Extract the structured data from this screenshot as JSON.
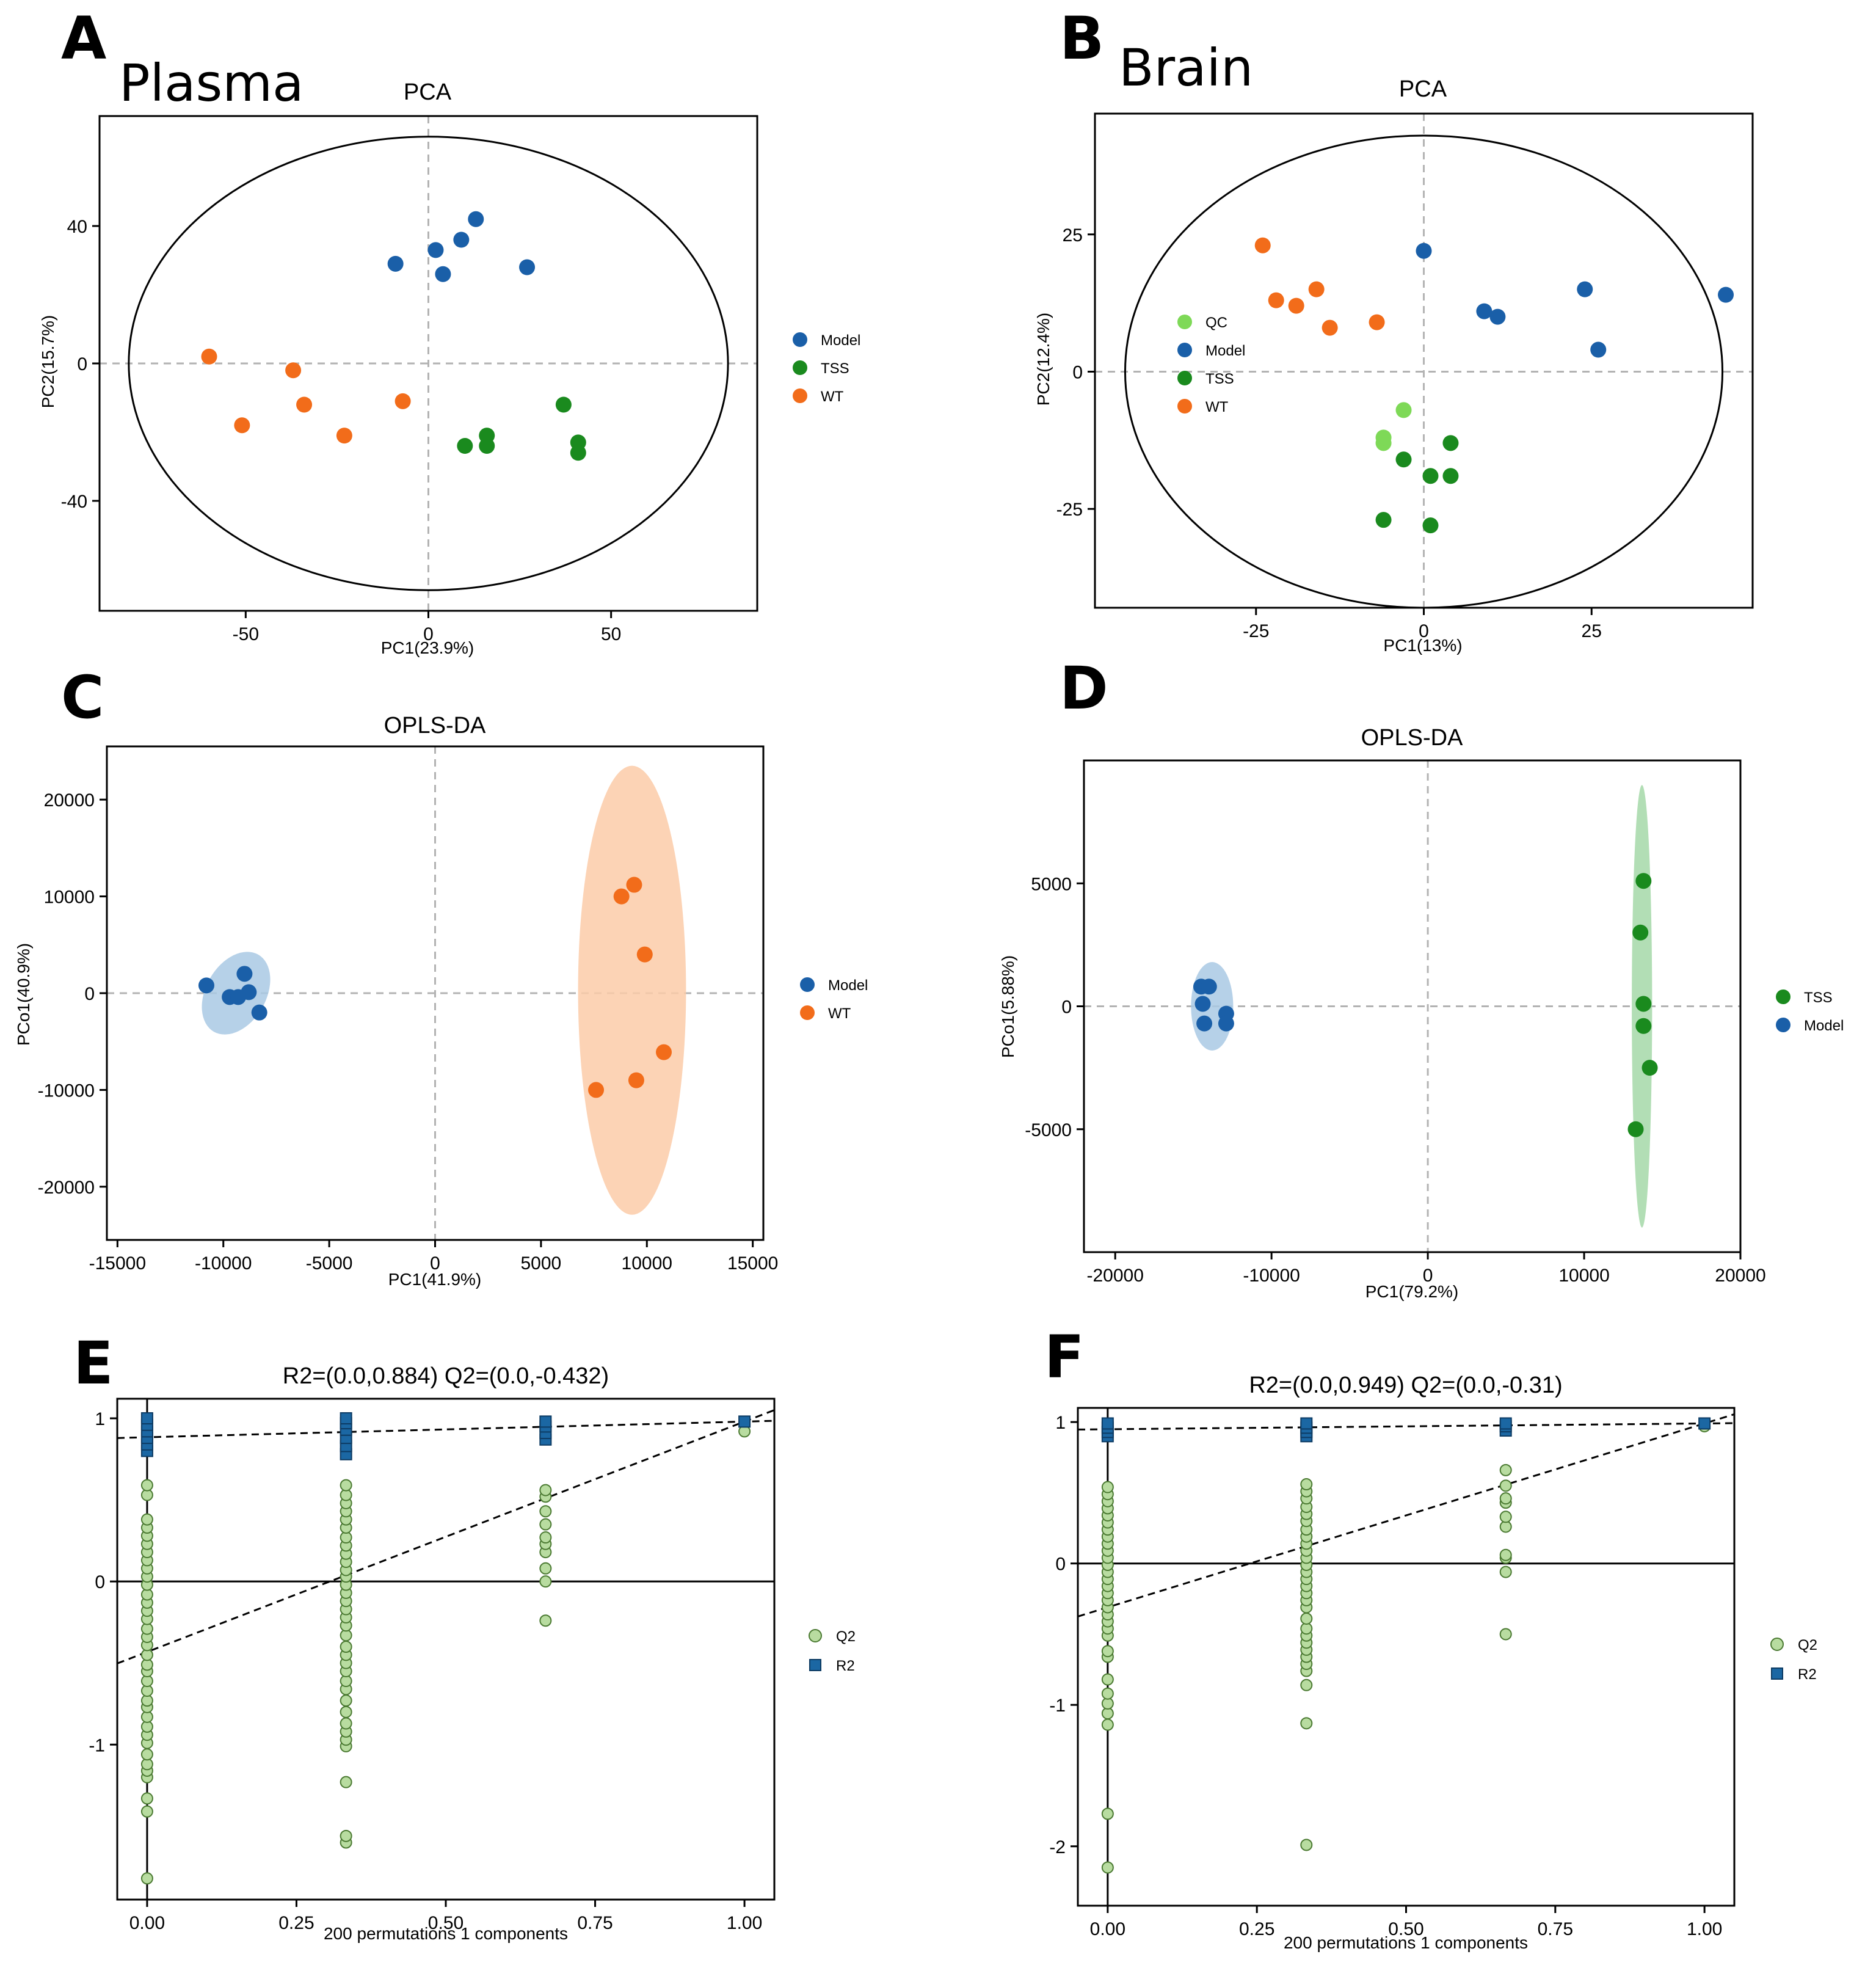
{
  "figure": {
    "panels": [
      "A",
      "B",
      "C",
      "D",
      "E",
      "F"
    ],
    "subtitles": {
      "A": "Plasma",
      "B": "Brain"
    }
  },
  "colors": {
    "Model": "#1a5fa8",
    "TSS": "#1a8a1e",
    "WT": "#f26c1a",
    "QC": "#7ed957",
    "Q2_fill": "#b8dca0",
    "Q2_stroke": "#4b7a32",
    "R2_fill": "#1b67a3",
    "ellipse_model": "#a9c9e4",
    "ellipse_wt": "#fbcba8",
    "ellipse_tss": "#a5d8a8"
  },
  "chart_data": [
    {
      "id": "A",
      "type": "scatter",
      "title": "PCA",
      "xlabel": "PC1(23.9%)",
      "ylabel": "PC2(15.7%)",
      "xlim": [
        -90,
        90
      ],
      "ylim": [
        -72,
        72
      ],
      "xticks": [
        -50,
        0,
        50
      ],
      "yticks": [
        -40,
        0,
        40
      ],
      "ellipse": {
        "cx": 0,
        "cy": 0,
        "rx": 82,
        "ry": 66
      },
      "legend": [
        "Model",
        "TSS",
        "WT"
      ],
      "series": [
        {
          "name": "Model",
          "points": [
            [
              -9,
              29
            ],
            [
              2,
              33
            ],
            [
              9,
              36
            ],
            [
              13,
              42
            ],
            [
              4,
              26
            ],
            [
              27,
              28
            ]
          ]
        },
        {
          "name": "TSS",
          "points": [
            [
              10,
              -24
            ],
            [
              16,
              -24
            ],
            [
              16,
              -21
            ],
            [
              37,
              -12
            ],
            [
              41,
              -23
            ],
            [
              41,
              -26
            ]
          ]
        },
        {
          "name": "WT",
          "points": [
            [
              -60,
              2
            ],
            [
              -37,
              -2
            ],
            [
              -51,
              -18
            ],
            [
              -34,
              -12
            ],
            [
              -23,
              -21
            ],
            [
              -7,
              -11
            ]
          ]
        }
      ]
    },
    {
      "id": "B",
      "type": "scatter",
      "title": "PCA",
      "xlabel": "PC1(13%)",
      "ylabel": "PC2(12.4%)",
      "xlim": [
        -49,
        49
      ],
      "ylim": [
        -43,
        47
      ],
      "xticks": [
        -25,
        0,
        25
      ],
      "yticks": [
        -25,
        0,
        25
      ],
      "ellipse": {
        "cx": 0,
        "cy": 0,
        "rx": 44.5,
        "ry": 43
      },
      "legend": [
        "QC",
        "Model",
        "TSS",
        "WT"
      ],
      "series": [
        {
          "name": "QC",
          "points": [
            [
              -3,
              -7
            ],
            [
              -6,
              -13
            ],
            [
              -6,
              -12
            ]
          ]
        },
        {
          "name": "Model",
          "points": [
            [
              0,
              22
            ],
            [
              9,
              11
            ],
            [
              11,
              10
            ],
            [
              24,
              15
            ],
            [
              26,
              4
            ],
            [
              45,
              14
            ]
          ]
        },
        {
          "name": "TSS",
          "points": [
            [
              -3,
              -16
            ],
            [
              -6,
              -27
            ],
            [
              1,
              -19
            ],
            [
              1,
              -28
            ],
            [
              4,
              -13
            ],
            [
              4,
              -19
            ]
          ]
        },
        {
          "name": "WT",
          "points": [
            [
              -24,
              23
            ],
            [
              -22,
              13
            ],
            [
              -19,
              12
            ],
            [
              -16,
              15
            ],
            [
              -14,
              8
            ],
            [
              -7,
              9
            ]
          ]
        }
      ]
    },
    {
      "id": "C",
      "type": "scatter",
      "title": "OPLS-DA",
      "xlabel": "PC1(41.9%)",
      "ylabel": "PCo1(40.9%)",
      "xlim": [
        -15500,
        15500
      ],
      "ylim": [
        -25500,
        25500
      ],
      "xticks": [
        -15000,
        -10000,
        -5000,
        0,
        5000,
        10000,
        15000
      ],
      "yticks": [
        -20000,
        -10000,
        0,
        10000,
        20000
      ],
      "ellipses": [
        {
          "group": "Model",
          "cx": -9400,
          "cy": 0,
          "rx": 2100,
          "ry": 3100,
          "rot": -60
        },
        {
          "group": "WT",
          "cx": 9300,
          "cy": 300,
          "rx": 2550,
          "ry": 23200,
          "rot": 0
        }
      ],
      "legend": [
        "Model",
        "WT"
      ],
      "series": [
        {
          "name": "Model",
          "points": [
            [
              -10800,
              800
            ],
            [
              -9700,
              -400
            ],
            [
              -9300,
              -400
            ],
            [
              -9000,
              2000
            ],
            [
              -8800,
              100
            ],
            [
              -8300,
              -2000
            ]
          ]
        },
        {
          "name": "WT",
          "points": [
            [
              7600,
              -10000
            ],
            [
              8800,
              10000
            ],
            [
              9400,
              11200
            ],
            [
              9500,
              -9000
            ],
            [
              9900,
              4000
            ],
            [
              10800,
              -6100
            ]
          ]
        }
      ]
    },
    {
      "id": "D",
      "type": "scatter",
      "title": "OPLS-DA",
      "xlabel": "PC1(79.2%)",
      "ylabel": "PCo1(5.88%)",
      "xlim": [
        -22000,
        20000
      ],
      "ylim": [
        -10000,
        10000
      ],
      "xticks": [
        -20000,
        -10000,
        0,
        10000,
        20000
      ],
      "yticks": [
        -5000,
        0,
        5000
      ],
      "ellipses": [
        {
          "group": "Model",
          "cx": -13800,
          "cy": 0,
          "rx": 1350,
          "ry": 1800,
          "rot": 0
        },
        {
          "group": "TSS",
          "cx": 13700,
          "cy": 0,
          "rx": 650,
          "ry": 9000,
          "rot": 0
        }
      ],
      "legend": [
        "TSS",
        "Model"
      ],
      "series": [
        {
          "name": "TSS",
          "points": [
            [
              13300,
              -5000
            ],
            [
              13600,
              3000
            ],
            [
              13800,
              100
            ],
            [
              13800,
              -800
            ],
            [
              13800,
              5100
            ],
            [
              14200,
              -2500
            ]
          ]
        },
        {
          "name": "Model",
          "points": [
            [
              -14500,
              800
            ],
            [
              -14400,
              100
            ],
            [
              -14300,
              -700
            ],
            [
              -14000,
              800
            ],
            [
              -12900,
              -300
            ],
            [
              -12900,
              -700
            ]
          ]
        }
      ]
    },
    {
      "id": "E",
      "type": "scatter",
      "title": "R2=(0.0,0.884)   Q2=(0.0,-0.432)",
      "xlabel": "200 permutations 1 components",
      "ylabel": "",
      "xlim": [
        -0.05,
        1.05
      ],
      "ylim": [
        -1.95,
        1.12
      ],
      "xticks": [
        "0.00",
        "0.25",
        "0.50",
        "0.75",
        "1.00"
      ],
      "yticks": [
        "-1",
        "0",
        "1"
      ],
      "lines": {
        "R2": [
          [
            0,
            0.884
          ],
          [
            1,
            0.98
          ]
        ],
        "Q2": [
          [
            0,
            -0.432
          ],
          [
            1,
            0.98
          ]
        ]
      },
      "legend": [
        "Q2",
        "R2"
      ],
      "series": [
        {
          "name": "Q2",
          "groups": [
            {
              "x": 0,
              "values": [
                -1.82,
                -1.41,
                -1.33,
                -1.2,
                -1.16,
                -1.12,
                -1.06,
                -0.99,
                -0.94,
                -0.89,
                -0.83,
                -0.77,
                -0.73,
                -0.67,
                -0.61,
                -0.55,
                -0.51,
                -0.45,
                -0.39,
                -0.34,
                -0.29,
                -0.23,
                -0.18,
                -0.13,
                -0.08,
                -0.02,
                0.03,
                0.08,
                0.13,
                0.18,
                0.23,
                0.28,
                0.33,
                0.38,
                0.53,
                0.59
              ]
            },
            {
              "x": 0.333,
              "values": [
                -1.6,
                -1.56,
                -1.23,
                -1.01,
                -0.97,
                -0.92,
                -0.87,
                -0.8,
                -0.73,
                -0.66,
                -0.61,
                -0.55,
                -0.5,
                -0.45,
                -0.4,
                -0.33,
                -0.27,
                -0.22,
                -0.17,
                -0.12,
                -0.07,
                -0.02,
                0.03,
                0.07,
                0.12,
                0.17,
                0.22,
                0.27,
                0.33,
                0.38,
                0.43,
                0.48,
                0.53,
                0.59
              ]
            },
            {
              "x": 0.667,
              "values": [
                -0.24,
                0.0,
                0.08,
                0.18,
                0.23,
                0.27,
                0.35,
                0.43,
                0.52,
                0.56
              ]
            },
            {
              "x": 1,
              "values": [
                0.92
              ]
            }
          ]
        },
        {
          "name": "R2",
          "groups": [
            {
              "x": 0,
              "values": [
                0.8,
                0.84,
                0.88,
                0.92,
                0.96,
                1.0
              ]
            },
            {
              "x": 0.333,
              "values": [
                0.78,
                0.83,
                0.88,
                0.93,
                0.97,
                1.0
              ]
            },
            {
              "x": 0.667,
              "values": [
                0.87,
                0.91,
                0.95,
                0.98
              ]
            },
            {
              "x": 1,
              "values": [
                0.98
              ]
            }
          ]
        }
      ]
    },
    {
      "id": "F",
      "type": "scatter",
      "title": "R2=(0.0,0.949)   Q2=(0.0,-0.31)",
      "xlabel": "200 permutations 1 components",
      "ylabel": "",
      "xlim": [
        -0.05,
        1.05
      ],
      "ylim": [
        -2.42,
        1.1
      ],
      "xticks": [
        "0.00",
        "0.25",
        "0.50",
        "0.75",
        "1.00"
      ],
      "yticks": [
        "-2",
        "-1",
        "0",
        "1"
      ],
      "lines": {
        "R2": [
          [
            0,
            0.949
          ],
          [
            1,
            0.99
          ]
        ],
        "Q2": [
          [
            0,
            -0.31
          ],
          [
            1,
            0.99
          ]
        ]
      },
      "legend": [
        "Q2",
        "R2"
      ],
      "series": [
        {
          "name": "Q2",
          "groups": [
            {
              "x": 0,
              "values": [
                -2.15,
                -1.77,
                -1.14,
                -1.06,
                -0.99,
                -0.92,
                -0.82,
                -0.66,
                -0.62,
                -0.51,
                -0.46,
                -0.41,
                -0.36,
                -0.31,
                -0.26,
                -0.21,
                -0.16,
                -0.11,
                -0.06,
                -0.01,
                0.04,
                0.09,
                0.14,
                0.19,
                0.24,
                0.29,
                0.34,
                0.39,
                0.44,
                0.49,
                0.54
              ]
            },
            {
              "x": 0.333,
              "values": [
                -1.99,
                -1.13,
                -0.86,
                -0.76,
                -0.71,
                -0.66,
                -0.61,
                -0.56,
                -0.51,
                -0.46,
                -0.39,
                -0.31,
                -0.26,
                -0.21,
                -0.16,
                -0.11,
                -0.06,
                -0.01,
                0.04,
                0.09,
                0.14,
                0.19,
                0.24,
                0.3,
                0.35,
                0.4,
                0.46,
                0.51,
                0.56
              ]
            },
            {
              "x": 0.667,
              "values": [
                -0.5,
                -0.06,
                0.04,
                0.06,
                0.26,
                0.33,
                0.43,
                0.46,
                0.55,
                0.66
              ]
            },
            {
              "x": 1,
              "values": [
                0.97
              ]
            }
          ]
        },
        {
          "name": "R2",
          "groups": [
            {
              "x": 0,
              "values": [
                0.9,
                0.93,
                0.96,
                0.99
              ]
            },
            {
              "x": 0.333,
              "values": [
                0.9,
                0.93,
                0.96,
                0.99
              ]
            },
            {
              "x": 0.667,
              "values": [
                0.94,
                0.97,
                0.99
              ]
            },
            {
              "x": 1,
              "values": [
                0.99
              ]
            }
          ]
        }
      ]
    }
  ]
}
